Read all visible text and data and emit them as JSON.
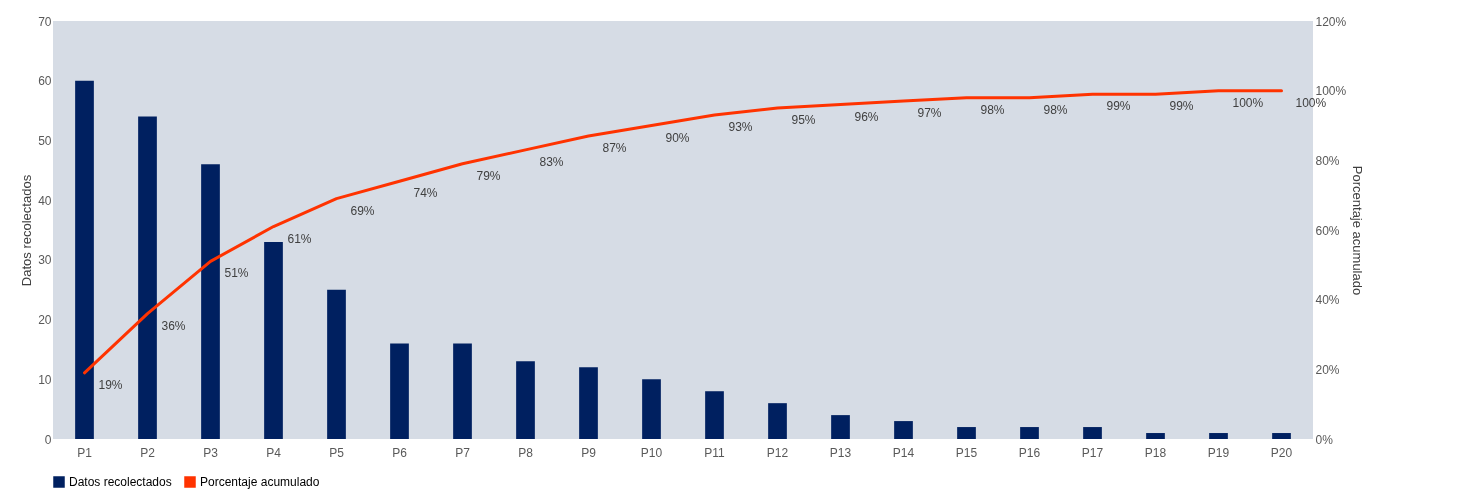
{
  "chart_data": {
    "type": "bar",
    "ylabel": "Datos recolectados",
    "y2label": "Porcentaje acumulado",
    "categories": [
      "P1",
      "P2",
      "P3",
      "P4",
      "P5",
      "P6",
      "P7",
      "P8",
      "P9",
      "P10",
      "P11",
      "P12",
      "P13",
      "P14",
      "P15",
      "P16",
      "P17",
      "P18",
      "P19",
      "P20"
    ],
    "series": [
      {
        "name": "Datos recolectados",
        "color": "#002060",
        "values": [
          60,
          54,
          46,
          33,
          25,
          16,
          16,
          13,
          12,
          10,
          8,
          6,
          4,
          3,
          2,
          2,
          2,
          1,
          1,
          1
        ]
      },
      {
        "name": "Porcentaje acumulado",
        "type": "line",
        "axis": "y2",
        "color": "#ff3300",
        "values": [
          19,
          36,
          51,
          61,
          69,
          74,
          79,
          83,
          87,
          90,
          93,
          95,
          96,
          97,
          98,
          98,
          99,
          99,
          100,
          100
        ],
        "value_labels": [
          "19%",
          "36%",
          "51%",
          "61%",
          "69%",
          "74%",
          "79%",
          "83%",
          "87%",
          "90%",
          "93%",
          "95%",
          "96%",
          "97%",
          "98%",
          "98%",
          "99%",
          "99%",
          "100%",
          "100%"
        ]
      }
    ],
    "ylim": [
      0,
      70
    ],
    "yticks": [
      0,
      10,
      20,
      30,
      40,
      50,
      60,
      70
    ],
    "y2lim": [
      0,
      120
    ],
    "y2ticks": [
      {
        "value": 0,
        "label": "0%"
      },
      {
        "value": 20,
        "label": "20%"
      },
      {
        "value": 40,
        "label": "40%"
      },
      {
        "value": 60,
        "label": "60%"
      },
      {
        "value": 80,
        "label": "80%"
      },
      {
        "value": 100,
        "label": "100%"
      },
      {
        "value": 120,
        "label": "120%"
      }
    ],
    "grid": false,
    "legend": "bottom",
    "marker": "none"
  }
}
